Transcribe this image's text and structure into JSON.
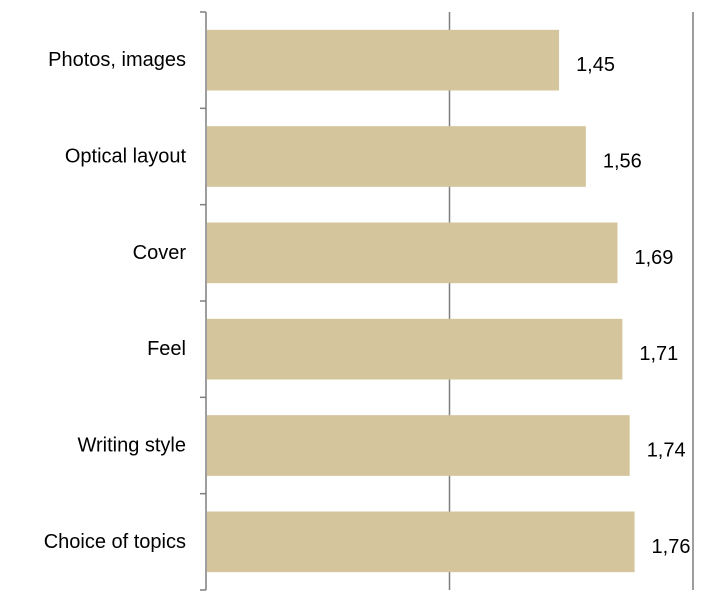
{
  "chart_data": {
    "type": "bar",
    "orientation": "horizontal",
    "categories": [
      "Photos, images",
      "Optical layout",
      "Cover",
      "Feel",
      "Writing style",
      "Choice of topics"
    ],
    "values": [
      1.45,
      1.56,
      1.69,
      1.71,
      1.74,
      1.76
    ],
    "data_labels": [
      "1,45",
      "1,56",
      "1,69",
      "1,71",
      "1,74",
      "1,76"
    ],
    "xlim": [
      0,
      2
    ],
    "x_gridlines": [
      1,
      2
    ],
    "tick_labels_shown": false,
    "legend": "none",
    "colors": {
      "bar": "#d4c59c",
      "gridline": "#7f7f7f",
      "axis": "#7f7f7f"
    }
  }
}
